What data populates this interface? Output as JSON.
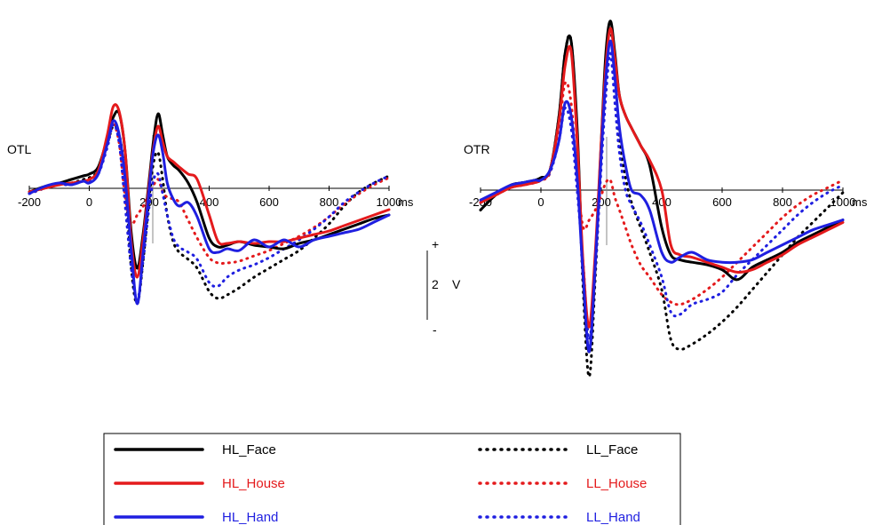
{
  "chart_data": {
    "type": "line",
    "x_unit": "ms",
    "x_ticks": [
      -200,
      0,
      200,
      400,
      600,
      800,
      1000
    ],
    "xlim": [
      -200,
      1000
    ],
    "ylim": [
      -8,
      7
    ],
    "amplitude_scale": {
      "plus": "+",
      "minus": "-",
      "value": "2",
      "unit": "V"
    },
    "colors": {
      "Face": "#000000",
      "House": "#e41a1c",
      "Hand": "#1f1fe0"
    },
    "legend": [
      {
        "name": "HL_Face",
        "style": "solid",
        "color": "#000000"
      },
      {
        "name": "LL_Face",
        "style": "dotted",
        "color": "#000000"
      },
      {
        "name": "HL_House",
        "style": "solid",
        "color": "#e41a1c"
      },
      {
        "name": "LL_House",
        "style": "dotted",
        "color": "#e41a1c"
      },
      {
        "name": "HL_Hand",
        "style": "solid",
        "color": "#1f1fe0"
      },
      {
        "name": "LL_Hand",
        "style": "dotted",
        "color": "#1f1fe0"
      }
    ],
    "panels": [
      {
        "label": "OTL",
        "series": [
          {
            "name": "HL_Face",
            "x": [
              -200,
              -150,
              -100,
              -60,
              -20,
              0,
              30,
              60,
              80,
              100,
              120,
              140,
              160,
              180,
              200,
              215,
              230,
              245,
              260,
              280,
              300,
              330,
              360,
              400,
              430,
              460,
              500,
              550,
              600,
              650,
              700,
              750,
              800,
              850,
              900,
              950,
              1000
            ],
            "y": [
              -0.2,
              0.1,
              0.3,
              0.5,
              0.7,
              0.8,
              1.2,
              2.8,
              4.0,
              4.2,
              2.0,
              -2.5,
              -4.5,
              -2.5,
              0.5,
              2.8,
              4.2,
              3.0,
              1.8,
              1.3,
              1.0,
              0.3,
              -0.8,
              -2.8,
              -3.3,
              -3.2,
              -3.0,
              -3.2,
              -3.3,
              -3.4,
              -3.1,
              -2.9,
              -2.6,
              -2.3,
              -2.0,
              -1.7,
              -1.5
            ]
          },
          {
            "name": "HL_House",
            "x": [
              -200,
              -150,
              -100,
              -60,
              -20,
              0,
              30,
              60,
              80,
              100,
              120,
              140,
              160,
              180,
              200,
              215,
              230,
              245,
              260,
              280,
              300,
              330,
              360,
              400,
              430,
              460,
              500,
              550,
              600,
              650,
              700,
              750,
              800,
              850,
              900,
              950,
              1000
            ],
            "y": [
              -0.2,
              0.0,
              0.2,
              0.3,
              0.4,
              0.5,
              1.0,
              3.0,
              4.6,
              4.3,
              2.0,
              -3.0,
              -5.0,
              -2.8,
              0.3,
              2.4,
              3.5,
              2.6,
              1.8,
              1.5,
              1.2,
              0.8,
              0.5,
              -1.5,
              -3.0,
              -3.1,
              -3.0,
              -3.1,
              -3.0,
              -3.0,
              -2.8,
              -2.6,
              -2.4,
              -2.1,
              -1.8,
              -1.5,
              -1.2
            ]
          },
          {
            "name": "HL_Hand",
            "x": [
              -200,
              -150,
              -100,
              -60,
              -20,
              0,
              30,
              60,
              80,
              100,
              120,
              140,
              160,
              180,
              200,
              215,
              230,
              245,
              260,
              280,
              300,
              330,
              360,
              400,
              430,
              460,
              500,
              550,
              600,
              650,
              700,
              750,
              800,
              850,
              900,
              950,
              1000
            ],
            "y": [
              -0.3,
              0.1,
              0.3,
              0.2,
              0.4,
              0.3,
              0.8,
              2.5,
              3.8,
              3.0,
              0.5,
              -3.5,
              -6.5,
              -3.5,
              0.0,
              2.2,
              3.0,
              2.0,
              0.3,
              -0.6,
              -1.0,
              -0.8,
              -1.6,
              -3.4,
              -3.6,
              -3.4,
              -3.5,
              -2.9,
              -3.3,
              -2.9,
              -3.3,
              -2.9,
              -2.7,
              -2.5,
              -2.3,
              -1.9,
              -1.5
            ]
          },
          {
            "name": "LL_Face",
            "x": [
              -200,
              -150,
              -100,
              -60,
              -20,
              0,
              30,
              60,
              80,
              100,
              120,
              140,
              160,
              180,
              200,
              215,
              230,
              245,
              260,
              280,
              300,
              330,
              360,
              400,
              430,
              460,
              500,
              550,
              600,
              650,
              700,
              750,
              800,
              850,
              900,
              950,
              1000
            ],
            "y": [
              -0.3,
              0.0,
              0.2,
              0.3,
              0.5,
              0.6,
              1.0,
              2.5,
              3.5,
              3.0,
              0.5,
              -4.5,
              -6.5,
              -4.0,
              -0.5,
              1.5,
              2.0,
              0.5,
              -1.5,
              -3.0,
              -3.6,
              -4.0,
              -4.5,
              -5.8,
              -6.2,
              -6.0,
              -5.6,
              -5.0,
              -4.5,
              -4.0,
              -3.5,
              -2.8,
              -2.0,
              -1.0,
              -0.2,
              0.3,
              0.7
            ]
          },
          {
            "name": "LL_House",
            "x": [
              -200,
              -150,
              -100,
              -60,
              -20,
              0,
              30,
              60,
              80,
              100,
              120,
              140,
              160,
              180,
              200,
              215,
              230,
              245,
              260,
              280,
              300,
              330,
              360,
              400,
              430,
              460,
              500,
              550,
              600,
              650,
              700,
              750,
              800,
              850,
              900,
              950,
              1000
            ],
            "y": [
              -0.3,
              0.0,
              0.2,
              0.3,
              0.4,
              0.5,
              0.9,
              2.5,
              3.6,
              2.5,
              -0.5,
              -2.0,
              -1.5,
              -1.0,
              -0.3,
              0.2,
              0.5,
              -0.2,
              -0.5,
              -0.6,
              -0.8,
              -1.8,
              -2.8,
              -3.9,
              -4.2,
              -4.2,
              -4.1,
              -3.8,
              -3.5,
              -3.1,
              -2.7,
              -2.2,
              -1.6,
              -0.9,
              -0.3,
              0.2,
              0.6
            ]
          },
          {
            "name": "LL_Hand",
            "x": [
              -200,
              -150,
              -100,
              -60,
              -20,
              0,
              30,
              60,
              80,
              100,
              120,
              140,
              160,
              180,
              200,
              215,
              230,
              245,
              260,
              280,
              300,
              330,
              360,
              400,
              430,
              460,
              500,
              550,
              600,
              650,
              700,
              750,
              800,
              850,
              900,
              950,
              1000
            ],
            "y": [
              -0.3,
              0.0,
              0.2,
              0.2,
              0.4,
              0.4,
              0.8,
              2.3,
              3.6,
              2.5,
              -1.0,
              -4.5,
              -6.3,
              -4.0,
              -1.0,
              0.5,
              0.8,
              -0.3,
              -1.5,
              -2.8,
              -3.3,
              -3.6,
              -4.0,
              -5.3,
              -5.5,
              -5.0,
              -4.6,
              -4.3,
              -3.9,
              -3.4,
              -2.9,
              -2.3,
              -1.6,
              -0.8,
              -0.2,
              0.3,
              0.7
            ]
          }
        ]
      },
      {
        "label": "OTR",
        "series": [
          {
            "name": "HL_Face",
            "x": [
              -200,
              -150,
              -100,
              -60,
              -20,
              0,
              30,
              60,
              80,
              100,
              120,
              140,
              160,
              180,
              200,
              215,
              230,
              245,
              260,
              280,
              300,
              330,
              360,
              400,
              430,
              460,
              500,
              550,
              600,
              650,
              700,
              750,
              800,
              850,
              900,
              950,
              1000
            ],
            "y": [
              -0.8,
              -0.2,
              0.2,
              0.3,
              0.4,
              0.5,
              0.8,
              3.0,
              5.5,
              6.0,
              2.5,
              -3.5,
              -6.5,
              -3.0,
              2.0,
              5.5,
              6.8,
              5.5,
              3.8,
              3.0,
              2.5,
              1.8,
              1.0,
              -1.5,
              -2.6,
              -2.8,
              -2.9,
              -3.0,
              -3.2,
              -3.6,
              -3.1,
              -2.8,
              -2.5,
              -2.1,
              -1.8,
              -1.5,
              -1.2
            ]
          },
          {
            "name": "HL_House",
            "x": [
              -200,
              -150,
              -100,
              -60,
              -20,
              0,
              30,
              60,
              80,
              100,
              120,
              140,
              160,
              180,
              200,
              215,
              230,
              245,
              260,
              280,
              300,
              330,
              360,
              400,
              430,
              460,
              500,
              550,
              600,
              650,
              700,
              750,
              800,
              850,
              900,
              950,
              1000
            ],
            "y": [
              -0.5,
              -0.2,
              0.1,
              0.2,
              0.3,
              0.4,
              0.8,
              2.8,
              5.0,
              5.6,
              2.0,
              -3.0,
              -5.5,
              -2.5,
              2.0,
              5.0,
              6.5,
              5.3,
              3.8,
              3.0,
              2.5,
              1.8,
              1.2,
              0.0,
              -2.2,
              -2.6,
              -2.7,
              -2.9,
              -3.1,
              -3.3,
              -3.2,
              -2.9,
              -2.6,
              -2.2,
              -1.9,
              -1.6,
              -1.3
            ]
          },
          {
            "name": "HL_Hand",
            "x": [
              -200,
              -150,
              -100,
              -60,
              -20,
              0,
              30,
              60,
              80,
              100,
              120,
              140,
              160,
              180,
              200,
              215,
              230,
              245,
              260,
              280,
              300,
              330,
              360,
              400,
              430,
              460,
              500,
              550,
              600,
              650,
              700,
              750,
              800,
              850,
              900,
              950,
              1000
            ],
            "y": [
              -0.4,
              -0.1,
              0.2,
              0.3,
              0.4,
              0.4,
              0.8,
              2.0,
              3.5,
              3.0,
              0.5,
              -3.5,
              -6.5,
              -3.0,
              1.5,
              4.5,
              6.0,
              4.5,
              2.5,
              1.0,
              0.0,
              -0.2,
              -0.8,
              -2.5,
              -2.9,
              -2.7,
              -2.5,
              -2.8,
              -2.9,
              -2.9,
              -2.8,
              -2.5,
              -2.2,
              -1.9,
              -1.6,
              -1.4,
              -1.2
            ]
          },
          {
            "name": "LL_Face",
            "x": [
              -200,
              -150,
              -100,
              -60,
              -20,
              0,
              30,
              60,
              80,
              100,
              120,
              140,
              160,
              180,
              200,
              215,
              230,
              245,
              260,
              280,
              300,
              330,
              360,
              400,
              430,
              460,
              500,
              550,
              600,
              650,
              700,
              750,
              800,
              850,
              900,
              950,
              1000
            ],
            "y": [
              -0.8,
              -0.2,
              0.2,
              0.3,
              0.4,
              0.5,
              0.8,
              3.0,
              5.5,
              6.0,
              2.0,
              -4.0,
              -7.5,
              -3.5,
              1.5,
              5.0,
              6.5,
              4.5,
              2.0,
              0.5,
              -0.5,
              -1.5,
              -2.5,
              -4.0,
              -6.0,
              -6.4,
              -6.2,
              -5.8,
              -5.3,
              -4.7,
              -4.0,
              -3.3,
              -2.6,
              -1.9,
              -1.3,
              -0.7,
              -0.1
            ]
          },
          {
            "name": "LL_House",
            "x": [
              -200,
              -150,
              -100,
              -60,
              -20,
              0,
              30,
              60,
              80,
              100,
              120,
              140,
              160,
              180,
              200,
              215,
              230,
              245,
              260,
              280,
              300,
              330,
              360,
              400,
              430,
              460,
              500,
              550,
              600,
              650,
              700,
              750,
              800,
              850,
              900,
              950,
              1000
            ],
            "y": [
              -0.5,
              -0.2,
              0.1,
              0.2,
              0.3,
              0.4,
              0.7,
              2.5,
              4.3,
              3.5,
              0.5,
              -1.5,
              -1.2,
              -0.8,
              -0.2,
              0.3,
              0.4,
              -0.3,
              -0.8,
              -1.5,
              -2.2,
              -3.0,
              -3.5,
              -4.2,
              -4.5,
              -4.6,
              -4.4,
              -4.0,
              -3.5,
              -2.9,
              -2.3,
              -1.7,
              -1.1,
              -0.6,
              -0.2,
              0.1,
              0.4
            ]
          },
          {
            "name": "LL_Hand",
            "x": [
              -200,
              -150,
              -100,
              -60,
              -20,
              0,
              30,
              60,
              80,
              100,
              120,
              140,
              160,
              180,
              200,
              215,
              230,
              245,
              260,
              280,
              300,
              330,
              360,
              400,
              430,
              460,
              500,
              550,
              600,
              650,
              700,
              750,
              800,
              850,
              900,
              950,
              1000
            ],
            "y": [
              -0.5,
              -0.2,
              0.1,
              0.2,
              0.3,
              0.4,
              0.7,
              2.0,
              3.3,
              2.5,
              0.0,
              -3.0,
              -6.0,
              -3.2,
              1.0,
              3.8,
              5.5,
              3.5,
              1.5,
              0.0,
              -0.6,
              -1.3,
              -2.2,
              -3.5,
              -4.9,
              -5.0,
              -4.6,
              -4.4,
              -4.1,
              -3.4,
              -2.8,
              -2.2,
              -1.6,
              -1.0,
              -0.5,
              -0.1,
              0.2
            ]
          }
        ]
      }
    ]
  }
}
